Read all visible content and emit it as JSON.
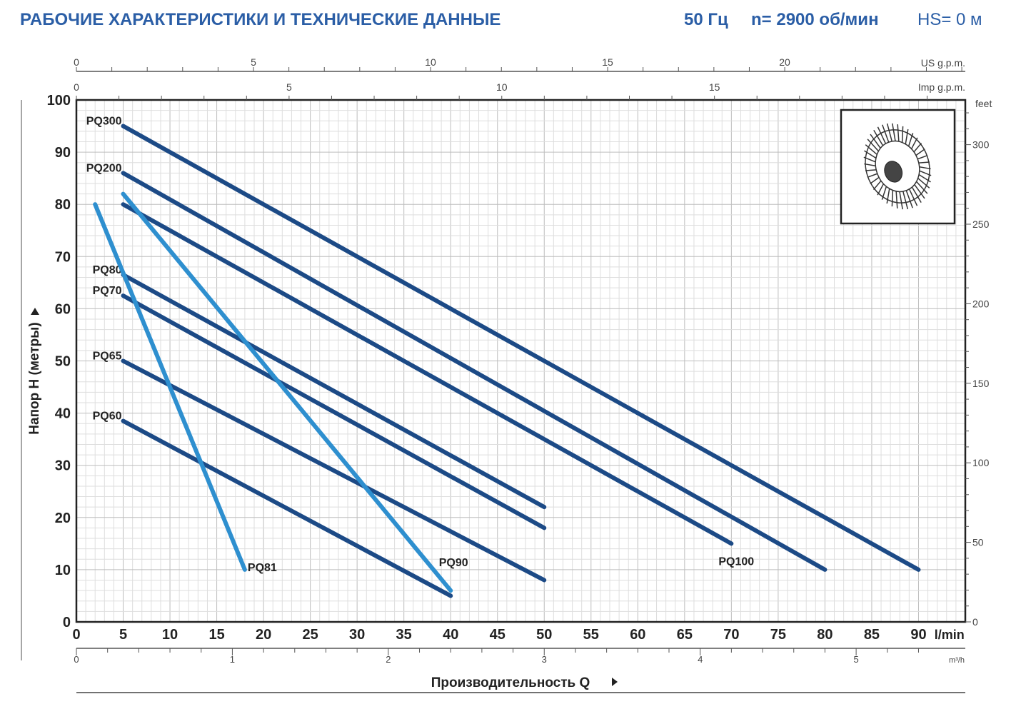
{
  "header": {
    "title": "РАБОЧИЕ ХАРАКТЕРИСТИКИ И ТЕХНИЧЕСКИЕ ДАННЫЕ",
    "frequency": "50 Гц",
    "speed": "n= 2900 об/мин",
    "hs": "HS= 0 м"
  },
  "chart_data": {
    "type": "line",
    "xlabel": "Производительность Q",
    "ylabel": "Напор H (метры)",
    "x_unit": "l/min",
    "xlim": [
      0,
      95
    ],
    "ylim": [
      0,
      100
    ],
    "x_ticks": [
      0,
      5,
      10,
      15,
      20,
      25,
      30,
      35,
      40,
      45,
      50,
      55,
      60,
      65,
      70,
      75,
      80,
      85,
      90
    ],
    "y_ticks": [
      0,
      10,
      20,
      30,
      40,
      50,
      60,
      70,
      80,
      90,
      100
    ],
    "grid": true,
    "secondary_axes": {
      "m3h": {
        "unit": "m³/h",
        "ticks": [
          0,
          1,
          2,
          3,
          4,
          5
        ]
      },
      "us_gpm": {
        "unit": "US g.p.m.",
        "ticks": [
          0,
          5,
          10,
          15,
          20
        ]
      },
      "imp_gpm": {
        "unit": "Imp g.p.m.",
        "ticks": [
          0,
          5,
          10,
          15
        ]
      },
      "feet": {
        "unit": "feet",
        "ticks": [
          0,
          50,
          100,
          150,
          200,
          250,
          300
        ]
      }
    },
    "colors": {
      "dark": "#1c4a86",
      "light": "#2e8fcf",
      "title": "#2b5ea6"
    },
    "series": [
      {
        "name": "PQ300",
        "color": "dark",
        "points": [
          [
            5,
            95
          ],
          [
            90,
            10
          ]
        ],
        "label_at": "start"
      },
      {
        "name": "PQ200",
        "color": "dark",
        "points": [
          [
            5,
            86
          ],
          [
            80,
            10
          ]
        ],
        "label_at": "start"
      },
      {
        "name": "PQ100",
        "color": "dark",
        "points": [
          [
            5,
            80
          ],
          [
            70,
            15
          ]
        ],
        "label_at": "end"
      },
      {
        "name": "PQ80",
        "color": "dark",
        "points": [
          [
            5,
            66.5
          ],
          [
            50,
            22
          ]
        ],
        "label_at": "start"
      },
      {
        "name": "PQ70",
        "color": "dark",
        "points": [
          [
            5,
            62.5
          ],
          [
            50,
            18
          ]
        ],
        "label_at": "start"
      },
      {
        "name": "PQ65",
        "color": "dark",
        "points": [
          [
            5,
            50
          ],
          [
            50,
            8
          ]
        ],
        "label_at": "start"
      },
      {
        "name": "PQ60",
        "color": "dark",
        "points": [
          [
            5,
            38.5
          ],
          [
            40,
            5
          ]
        ],
        "label_at": "start"
      },
      {
        "name": "PQ81",
        "color": "light",
        "points": [
          [
            2,
            80
          ],
          [
            18,
            10
          ]
        ],
        "label_at": "end"
      },
      {
        "name": "PQ90",
        "color": "light",
        "points": [
          [
            5,
            82
          ],
          [
            40,
            6
          ]
        ],
        "label_at": "end"
      }
    ]
  }
}
